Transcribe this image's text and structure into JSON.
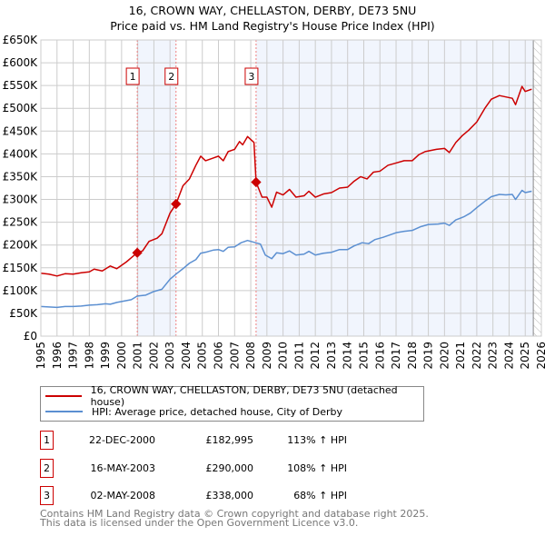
{
  "title": "16, CROWN WAY, CHELLASTON, DERBY, DE73 5NU",
  "subtitle": "Price paid vs. HM Land Registry's House Price Index (HPI)",
  "chart_data": {
    "type": "line",
    "title": "16, CROWN WAY, CHELLASTON, DERBY, DE73 5NU — Price paid vs. HM Land Registry's House Price Index (HPI)",
    "xlim": [
      1995,
      2026
    ],
    "ylim": [
      0,
      650000
    ],
    "x_ticks": [
      "1995",
      "1996",
      "1997",
      "1998",
      "1999",
      "2000",
      "2001",
      "2002",
      "2003",
      "2004",
      "2005",
      "2006",
      "2007",
      "2008",
      "2009",
      "2010",
      "2011",
      "2012",
      "2013",
      "2014",
      "2015",
      "2016",
      "2017",
      "2018",
      "2019",
      "2020",
      "2021",
      "2022",
      "2023",
      "2024",
      "2025",
      "2026"
    ],
    "y_ticks": [
      {
        "v": 0,
        "label": "£0"
      },
      {
        "v": 50000,
        "label": "£50K"
      },
      {
        "v": 100000,
        "label": "£100K"
      },
      {
        "v": 150000,
        "label": "£150K"
      },
      {
        "v": 200000,
        "label": "£200K"
      },
      {
        "v": 250000,
        "label": "£250K"
      },
      {
        "v": 300000,
        "label": "£300K"
      },
      {
        "v": 350000,
        "label": "£350K"
      },
      {
        "v": 400000,
        "label": "£400K"
      },
      {
        "v": 450000,
        "label": "£450K"
      },
      {
        "v": 500000,
        "label": "£500K"
      },
      {
        "v": 550000,
        "label": "£550K"
      },
      {
        "v": 600000,
        "label": "£600K"
      },
      {
        "v": 650000,
        "label": "£650K"
      }
    ],
    "grid": true,
    "shaded_ranges": [
      [
        2000.97,
        2003.37
      ],
      [
        2008.33,
        2025.5
      ]
    ],
    "hatched_from": 2025.5,
    "series": [
      {
        "name": "16, CROWN WAY, CHELLASTON, DERBY, DE73 5NU (detached house)",
        "color": "#cc0000",
        "points": [
          [
            1995,
            138000
          ],
          [
            1995.5,
            136000
          ],
          [
            1996,
            132000
          ],
          [
            1996.5,
            137000
          ],
          [
            1997,
            136000
          ],
          [
            1997.5,
            139000
          ],
          [
            1998,
            141000
          ],
          [
            1998.3,
            147000
          ],
          [
            1998.8,
            143000
          ],
          [
            1999.3,
            154000
          ],
          [
            1999.7,
            148000
          ],
          [
            2000.3,
            163000
          ],
          [
            2000.6,
            172000
          ],
          [
            2000.97,
            182995
          ],
          [
            2001.3,
            187000
          ],
          [
            2001.7,
            208000
          ],
          [
            2002.2,
            215000
          ],
          [
            2002.5,
            225000
          ],
          [
            2003,
            270000
          ],
          [
            2003.37,
            290000
          ],
          [
            2003.8,
            330000
          ],
          [
            2004.2,
            345000
          ],
          [
            2004.6,
            375000
          ],
          [
            2004.9,
            395000
          ],
          [
            2005.2,
            385000
          ],
          [
            2005.6,
            390000
          ],
          [
            2006,
            395000
          ],
          [
            2006.3,
            385000
          ],
          [
            2006.6,
            405000
          ],
          [
            2007,
            410000
          ],
          [
            2007.3,
            427000
          ],
          [
            2007.5,
            420000
          ],
          [
            2007.8,
            438000
          ],
          [
            2008.2,
            425000
          ],
          [
            2008.33,
            338000
          ],
          [
            2008.7,
            305000
          ],
          [
            2009,
            305000
          ],
          [
            2009.3,
            283000
          ],
          [
            2009.6,
            316000
          ],
          [
            2010,
            310000
          ],
          [
            2010.4,
            322000
          ],
          [
            2010.8,
            305000
          ],
          [
            2011.3,
            308000
          ],
          [
            2011.6,
            318000
          ],
          [
            2012,
            305000
          ],
          [
            2012.5,
            312000
          ],
          [
            2013,
            315000
          ],
          [
            2013.5,
            325000
          ],
          [
            2014,
            327000
          ],
          [
            2014.4,
            340000
          ],
          [
            2014.8,
            350000
          ],
          [
            2015.2,
            345000
          ],
          [
            2015.6,
            360000
          ],
          [
            2016,
            362000
          ],
          [
            2016.5,
            375000
          ],
          [
            2017,
            380000
          ],
          [
            2017.5,
            385000
          ],
          [
            2018,
            385000
          ],
          [
            2018.4,
            398000
          ],
          [
            2018.8,
            405000
          ],
          [
            2019.5,
            410000
          ],
          [
            2020,
            412000
          ],
          [
            2020.3,
            403000
          ],
          [
            2020.7,
            425000
          ],
          [
            2021.1,
            440000
          ],
          [
            2021.5,
            452000
          ],
          [
            2022,
            470000
          ],
          [
            2022.5,
            500000
          ],
          [
            2022.9,
            520000
          ],
          [
            2023.4,
            528000
          ],
          [
            2023.8,
            525000
          ],
          [
            2024.2,
            522000
          ],
          [
            2024.4,
            508000
          ],
          [
            2024.8,
            548000
          ],
          [
            2025,
            537000
          ],
          [
            2025.4,
            542000
          ]
        ]
      },
      {
        "name": "HPI: Average price, detached house, City of Derby",
        "color": "#5b8fd1",
        "points": [
          [
            1995,
            65000
          ],
          [
            1995.5,
            64000
          ],
          [
            1996,
            63000
          ],
          [
            1996.5,
            65000
          ],
          [
            1997,
            65000
          ],
          [
            1997.5,
            66000
          ],
          [
            1998,
            68000
          ],
          [
            1998.5,
            69000
          ],
          [
            1999,
            71000
          ],
          [
            1999.3,
            70000
          ],
          [
            1999.7,
            74000
          ],
          [
            2000.3,
            78000
          ],
          [
            2000.6,
            80000
          ],
          [
            2000.97,
            88000
          ],
          [
            2001.5,
            90000
          ],
          [
            2002,
            98000
          ],
          [
            2002.5,
            103000
          ],
          [
            2003,
            125000
          ],
          [
            2003.4,
            137000
          ],
          [
            2003.8,
            148000
          ],
          [
            2004.2,
            160000
          ],
          [
            2004.6,
            168000
          ],
          [
            2004.9,
            182000
          ],
          [
            2005.3,
            185000
          ],
          [
            2005.7,
            189000
          ],
          [
            2006,
            190000
          ],
          [
            2006.3,
            186000
          ],
          [
            2006.6,
            195000
          ],
          [
            2007,
            196000
          ],
          [
            2007.4,
            205000
          ],
          [
            2007.8,
            210000
          ],
          [
            2008.3,
            205000
          ],
          [
            2008.6,
            202000
          ],
          [
            2008.9,
            178000
          ],
          [
            2009.3,
            170000
          ],
          [
            2009.6,
            183000
          ],
          [
            2010,
            181000
          ],
          [
            2010.4,
            187000
          ],
          [
            2010.8,
            178000
          ],
          [
            2011.3,
            180000
          ],
          [
            2011.6,
            186000
          ],
          [
            2012,
            178000
          ],
          [
            2012.5,
            182000
          ],
          [
            2013,
            184000
          ],
          [
            2013.5,
            190000
          ],
          [
            2014,
            190000
          ],
          [
            2014.4,
            198000
          ],
          [
            2014.9,
            205000
          ],
          [
            2015.3,
            203000
          ],
          [
            2015.7,
            212000
          ],
          [
            2016.2,
            217000
          ],
          [
            2016.6,
            222000
          ],
          [
            2017,
            227000
          ],
          [
            2017.5,
            230000
          ],
          [
            2018,
            232000
          ],
          [
            2018.5,
            240000
          ],
          [
            2019,
            245000
          ],
          [
            2019.6,
            246000
          ],
          [
            2020,
            248000
          ],
          [
            2020.3,
            243000
          ],
          [
            2020.7,
            255000
          ],
          [
            2021.2,
            262000
          ],
          [
            2021.6,
            270000
          ],
          [
            2022,
            282000
          ],
          [
            2022.5,
            296000
          ],
          [
            2022.9,
            306000
          ],
          [
            2023.4,
            311000
          ],
          [
            2023.8,
            310000
          ],
          [
            2024.2,
            311000
          ],
          [
            2024.4,
            300000
          ],
          [
            2024.8,
            320000
          ],
          [
            2025,
            315000
          ],
          [
            2025.4,
            318000
          ]
        ]
      }
    ],
    "sales": [
      {
        "n": "1",
        "x": 2000.97,
        "y": 182995
      },
      {
        "n": "2",
        "x": 2003.37,
        "y": 290000
      },
      {
        "n": "3",
        "x": 2008.33,
        "y": 338000
      }
    ]
  },
  "legend": {
    "property": "16, CROWN WAY, CHELLASTON, DERBY, DE73 5NU (detached house)",
    "hpi": "HPI: Average price, detached house, City of Derby"
  },
  "table": [
    {
      "n": "1",
      "date": "22-DEC-2000",
      "price": "£182,995",
      "pct": "113% ↑ HPI"
    },
    {
      "n": "2",
      "date": "16-MAY-2003",
      "price": "£290,000",
      "pct": "108% ↑ HPI"
    },
    {
      "n": "3",
      "date": "02-MAY-2008",
      "price": "£338,000",
      "pct": "68% ↑ HPI"
    }
  ],
  "footer": {
    "line1": "Contains HM Land Registry data © Crown copyright and database right 2025.",
    "line2": "This data is licensed under the Open Government Licence v3.0."
  }
}
